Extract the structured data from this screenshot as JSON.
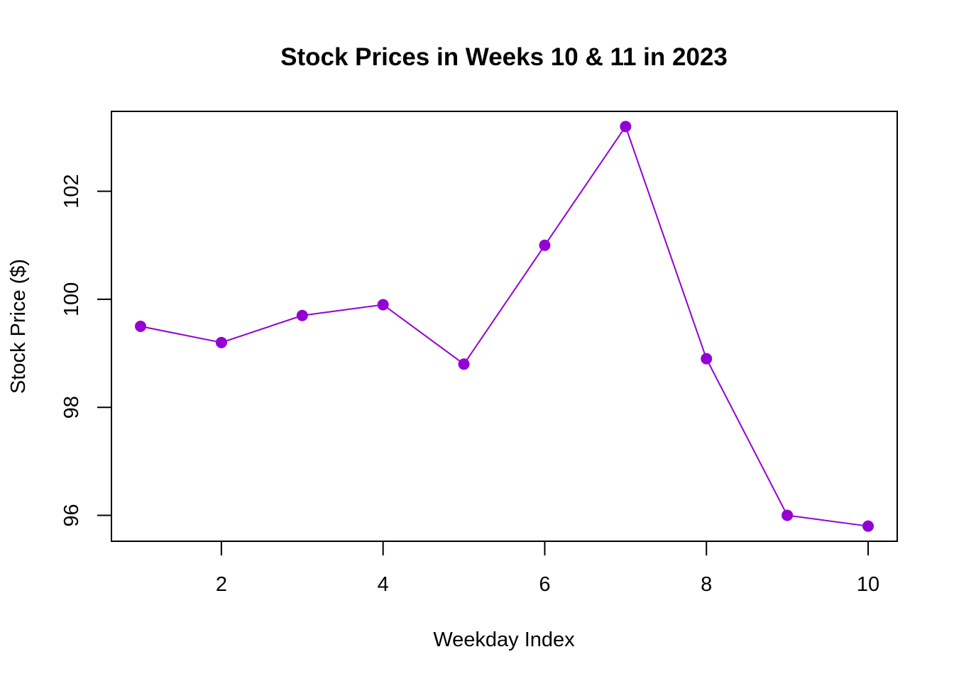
{
  "chart_data": {
    "type": "line",
    "title": "Stock Prices in Weeks 10 & 11 in 2023",
    "xlabel": "Weekday Index",
    "ylabel": "Stock Price ($)",
    "x": [
      1,
      2,
      3,
      4,
      5,
      6,
      7,
      8,
      9,
      10
    ],
    "series": [
      {
        "values": [
          99.5,
          99.2,
          99.7,
          99.9,
          98.8,
          101.0,
          103.2,
          98.9,
          96.0,
          95.8
        ],
        "color": "#9400D3",
        "marker": "filled-circle"
      }
    ],
    "xlim": [
      0.64,
      10.36
    ],
    "ylim": [
      95.52,
      103.48
    ],
    "xticks": [
      2,
      4,
      6,
      8,
      10
    ],
    "xtick_labels": [
      "2",
      "4",
      "6",
      "8",
      "10"
    ],
    "yticks": [
      96,
      98,
      100,
      102
    ],
    "ytick_labels": [
      "96",
      "98",
      "100",
      "102"
    ],
    "grid": false,
    "legend": "none"
  }
}
